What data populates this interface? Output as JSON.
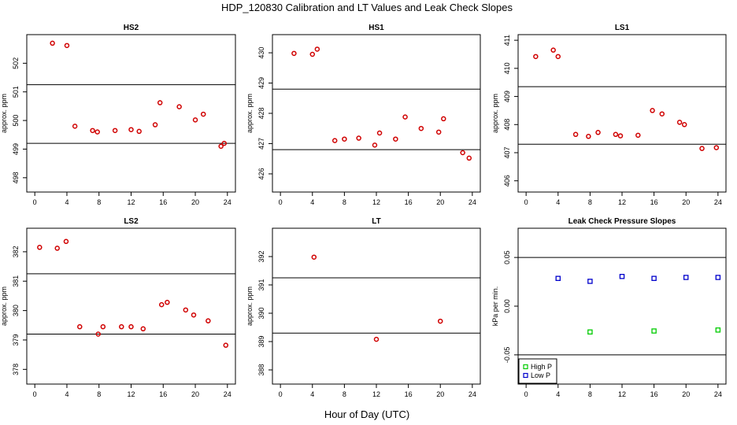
{
  "title": "HDP_120830  Calibration and LT Values and Leak Check Slopes",
  "xlabel": "Hour of Day (UTC)",
  "chart_data": [
    {
      "type": "scatter",
      "title": "HS2",
      "ylabel": "approx. ppm",
      "xlim": [
        -1,
        25
      ],
      "ylim": [
        497.5,
        503
      ],
      "xticks": [
        0,
        4,
        8,
        12,
        16,
        20,
        24
      ],
      "yticks": [
        498,
        499,
        500,
        501,
        502
      ],
      "hlines": [
        501.25,
        499.2
      ],
      "series": [
        {
          "name": "values",
          "color": "#d00000",
          "marker": "circle",
          "x": [
            2.2,
            4.0,
            5.0,
            7.2,
            7.8,
            10.0,
            12.0,
            13.0,
            15.0,
            15.6,
            18.0,
            20.0,
            21.0,
            23.2,
            23.6
          ],
          "y": [
            502.7,
            502.62,
            499.8,
            499.65,
            499.6,
            499.65,
            499.68,
            499.62,
            499.85,
            500.62,
            500.48,
            500.02,
            500.22,
            499.1,
            499.2
          ]
        }
      ]
    },
    {
      "type": "scatter",
      "title": "HS1",
      "ylabel": "approx. ppm",
      "xlim": [
        -1,
        25
      ],
      "ylim": [
        425.4,
        430.6
      ],
      "xticks": [
        0,
        4,
        8,
        12,
        16,
        20,
        24
      ],
      "yticks": [
        426,
        427,
        428,
        429,
        430
      ],
      "hlines": [
        428.8,
        426.8
      ],
      "series": [
        {
          "name": "values",
          "color": "#d00000",
          "marker": "circle",
          "x": [
            1.7,
            4.0,
            4.6,
            6.8,
            8.0,
            9.8,
            11.8,
            12.4,
            14.4,
            15.6,
            17.6,
            19.8,
            20.4,
            22.8,
            23.6
          ],
          "y": [
            429.98,
            429.95,
            430.12,
            427.1,
            427.15,
            427.18,
            426.95,
            427.35,
            427.15,
            427.88,
            427.5,
            427.38,
            427.82,
            426.7,
            426.52
          ]
        }
      ]
    },
    {
      "type": "scatter",
      "title": "LS1",
      "ylabel": "approx. ppm",
      "xlim": [
        -1,
        25
      ],
      "ylim": [
        405.6,
        411.2
      ],
      "xticks": [
        0,
        4,
        8,
        12,
        16,
        20,
        24
      ],
      "yticks": [
        406,
        407,
        408,
        409,
        410,
        411
      ],
      "hlines": [
        409.35,
        407.3
      ],
      "series": [
        {
          "name": "values",
          "color": "#d00000",
          "marker": "circle",
          "x": [
            1.2,
            3.4,
            4.0,
            6.2,
            7.8,
            9.0,
            11.2,
            11.8,
            14.0,
            15.8,
            17.0,
            19.2,
            19.8,
            22.0,
            23.8
          ],
          "y": [
            410.42,
            410.65,
            410.42,
            407.65,
            407.58,
            407.72,
            407.65,
            407.6,
            407.62,
            408.5,
            408.38,
            408.08,
            408.0,
            407.15,
            407.18
          ]
        }
      ]
    },
    {
      "type": "scatter",
      "title": "LS2",
      "ylabel": "approx. ppm",
      "xlim": [
        -1,
        25
      ],
      "ylim": [
        377.5,
        382.8
      ],
      "xticks": [
        0,
        4,
        8,
        12,
        16,
        20,
        24
      ],
      "yticks": [
        378,
        379,
        380,
        381,
        382
      ],
      "hlines": [
        381.25,
        379.2
      ],
      "series": [
        {
          "name": "values",
          "color": "#d00000",
          "marker": "circle",
          "x": [
            0.6,
            2.8,
            3.9,
            5.6,
            7.9,
            8.5,
            10.8,
            12.0,
            13.5,
            15.8,
            16.5,
            18.8,
            19.8,
            21.6,
            23.8
          ],
          "y": [
            382.15,
            382.12,
            382.35,
            379.45,
            379.2,
            379.45,
            379.45,
            379.45,
            379.38,
            380.2,
            380.28,
            380.02,
            379.85,
            379.65,
            378.82
          ]
        }
      ]
    },
    {
      "type": "scatter",
      "title": "LT",
      "ylabel": "approx. ppm",
      "xlim": [
        -1,
        25
      ],
      "ylim": [
        387.5,
        393
      ],
      "xticks": [
        0,
        4,
        8,
        12,
        16,
        20,
        24
      ],
      "yticks": [
        388,
        389,
        390,
        391,
        392
      ],
      "hlines": [
        391.25,
        389.3
      ],
      "series": [
        {
          "name": "values",
          "color": "#d00000",
          "marker": "circle",
          "x": [
            4.2,
            12.0,
            20.0
          ],
          "y": [
            391.98,
            389.08,
            389.72
          ]
        }
      ]
    },
    {
      "type": "scatter",
      "title": "Leak Check Pressure Slopes",
      "ylabel": "kPa per min.",
      "xlim": [
        -1,
        25
      ],
      "ylim": [
        -0.08,
        0.08
      ],
      "xticks": [
        0,
        4,
        8,
        12,
        16,
        20,
        24
      ],
      "yticks": [
        -0.05,
        0.0,
        0.05
      ],
      "ytick_labels": [
        "-0.05",
        "0.00",
        "0.05"
      ],
      "hlines": [
        0.05,
        -0.05
      ],
      "legend": {
        "position": "bottom-left",
        "entries": [
          "High P",
          "Low P"
        ]
      },
      "series": [
        {
          "name": "High P",
          "color": "#00cc00",
          "marker": "square",
          "x": [
            8,
            16,
            24
          ],
          "y": [
            -0.0265,
            -0.0255,
            -0.0245
          ]
        },
        {
          "name": "Low P",
          "color": "#0000cc",
          "marker": "square",
          "x": [
            4,
            8,
            12,
            16,
            20,
            24
          ],
          "y": [
            0.0285,
            0.0255,
            0.0305,
            0.0285,
            0.0295,
            0.0295
          ]
        }
      ]
    }
  ]
}
